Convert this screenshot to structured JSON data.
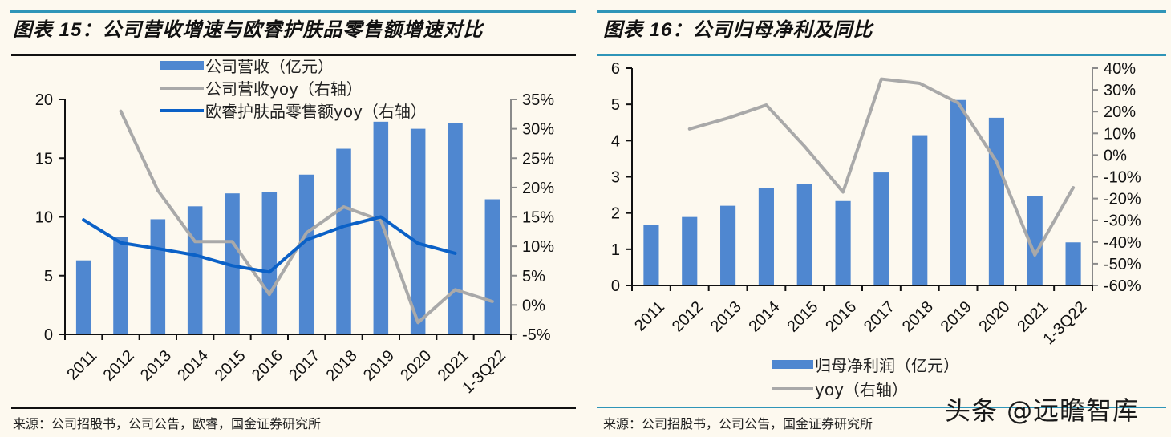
{
  "colors": {
    "bar": "#4f87d0",
    "grey_line": "#a9a9a9",
    "blue_line": "#0b61c7",
    "accent_rule": "#2f95b8",
    "background": "#fdf9ef"
  },
  "left": {
    "title": "图表 15：公司营收增速与欧睿护肤品零售额增速对比",
    "source": "来源：公司招股书，公司公告，欧睿，国金证券研究所"
  },
  "right": {
    "title": "图表 16：公司归母净利及同比",
    "source": "来源：公司招股书，公司公告，国金证券研究所"
  },
  "watermark": "头条 @远瞻智库",
  "chart_data": [
    {
      "type": "bar",
      "title": "公司营收增速与欧睿护肤品零售额增速对比",
      "categories": [
        "2011",
        "2012",
        "2013",
        "2014",
        "2015",
        "2016",
        "2017",
        "2018",
        "2019",
        "2020",
        "2021",
        "1-3Q22"
      ],
      "ylim": [
        0,
        20
      ],
      "yticks": [
        0,
        5,
        10,
        15,
        20
      ],
      "ytick_labels": [
        "0",
        "5",
        "10",
        "15",
        "20"
      ],
      "y2lim": [
        -5,
        35
      ],
      "y2ticks": [
        -5,
        0,
        5,
        10,
        15,
        20,
        25,
        30,
        35
      ],
      "y2tick_labels": [
        "-5%",
        "0%",
        "5%",
        "10%",
        "15%",
        "20%",
        "25%",
        "30%",
        "35%"
      ],
      "legend_position": "top",
      "grid": false,
      "series": [
        {
          "name": "公司营收（亿元）",
          "kind": "bar",
          "axis": "left",
          "values": [
            6.3,
            8.3,
            9.8,
            10.9,
            12.0,
            12.1,
            13.6,
            15.8,
            18.1,
            17.5,
            18.0,
            11.5
          ]
        },
        {
          "name": "公司营收yoy（右轴）",
          "kind": "line",
          "axis": "right",
          "color": "grey",
          "values": [
            null,
            33.0,
            19.5,
            10.8,
            10.8,
            1.8,
            12.3,
            16.7,
            14.4,
            -3.0,
            2.6,
            0.6
          ]
        },
        {
          "name": "欧睿护肤品零售额yoy（右轴）",
          "kind": "line",
          "axis": "right",
          "color": "blue",
          "values": [
            14.5,
            10.6,
            9.6,
            8.5,
            6.7,
            5.6,
            11.1,
            13.4,
            15.0,
            10.5,
            8.8,
            null
          ]
        }
      ]
    },
    {
      "type": "bar",
      "title": "公司归母净利及同比",
      "categories": [
        "2011",
        "2012",
        "2013",
        "2014",
        "2015",
        "2016",
        "2017",
        "2018",
        "2019",
        "2020",
        "2021",
        "1-3Q22"
      ],
      "ylim": [
        0,
        6
      ],
      "yticks": [
        0,
        1,
        2,
        3,
        4,
        5,
        6
      ],
      "ytick_labels": [
        "0",
        "1",
        "2",
        "3",
        "4",
        "5",
        "6"
      ],
      "y2lim": [
        -60,
        40
      ],
      "y2ticks": [
        -60,
        -50,
        -40,
        -30,
        -20,
        -10,
        0,
        10,
        20,
        30,
        40
      ],
      "y2tick_labels": [
        "-60%",
        "-50%",
        "-40%",
        "-30%",
        "-20%",
        "-10%",
        "0%",
        "10%",
        "20%",
        "30%",
        "40%"
      ],
      "legend_position": "bottom",
      "grid": false,
      "series": [
        {
          "name": "归母净利润（亿元）",
          "kind": "bar",
          "axis": "left",
          "values": [
            1.67,
            1.89,
            2.2,
            2.68,
            2.81,
            2.33,
            3.12,
            4.15,
            5.12,
            4.63,
            2.47,
            1.19
          ]
        },
        {
          "name": "yoy（右轴）",
          "kind": "line",
          "axis": "right",
          "color": "grey",
          "values": [
            null,
            12,
            17,
            23,
            4,
            -17,
            35,
            33,
            24,
            -3,
            -46,
            -15
          ]
        }
      ]
    }
  ]
}
